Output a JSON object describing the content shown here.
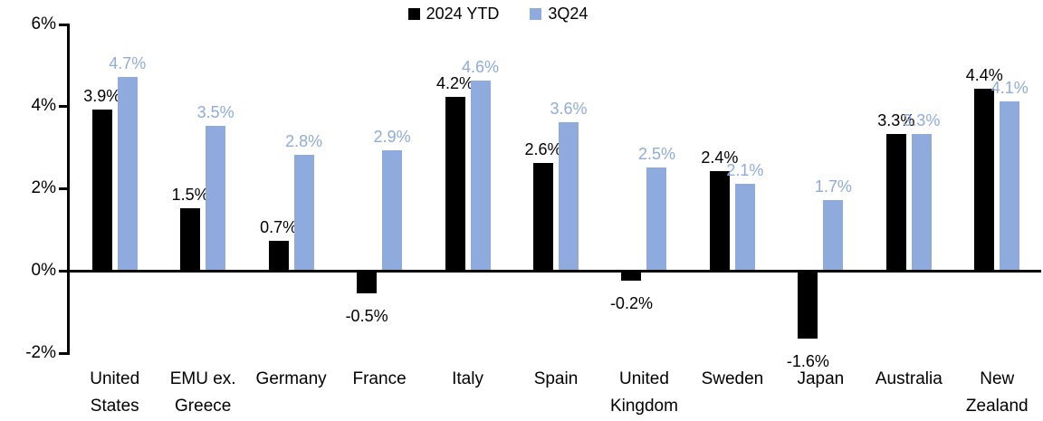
{
  "chart_data": {
    "type": "bar",
    "legend": {
      "position": "top-center",
      "entries": [
        "2024 YTD",
        "3Q24"
      ]
    },
    "categories": [
      "United States",
      "EMU ex. Greece",
      "Germany",
      "France",
      "Italy",
      "Spain",
      "United Kingdom",
      "Sweden",
      "Japan",
      "Australia",
      "New Zealand"
    ],
    "category_lines": [
      [
        "United",
        "States"
      ],
      [
        "EMU ex.",
        "Greece"
      ],
      [
        "Germany"
      ],
      [
        "France"
      ],
      [
        "Italy"
      ],
      [
        "Spain"
      ],
      [
        "United",
        "Kingdom"
      ],
      [
        "Sweden"
      ],
      [
        "Japan"
      ],
      [
        "Australia"
      ],
      [
        "New",
        "Zealand"
      ]
    ],
    "series": [
      {
        "name": "2024 YTD",
        "color": "#000000",
        "values": [
          3.9,
          1.5,
          0.7,
          -0.5,
          4.2,
          2.6,
          -0.2,
          2.4,
          -1.6,
          3.3,
          4.4
        ],
        "labels": [
          "3.9%",
          "1.5%",
          "0.7%",
          "-0.5%",
          "4.2%",
          "2.6%",
          "-0.2%",
          "2.4%",
          "-1.6%",
          "3.3%",
          "4.4%"
        ]
      },
      {
        "name": "3Q24",
        "color": "#8FAADC",
        "values": [
          4.7,
          3.5,
          2.8,
          2.9,
          4.6,
          3.6,
          2.5,
          2.1,
          1.7,
          3.3,
          4.1
        ],
        "labels": [
          "4.7%",
          "3.5%",
          "2.8%",
          "2.9%",
          "4.6%",
          "3.6%",
          "2.5%",
          "2.1%",
          "1.7%",
          "3.3%",
          "4.1%"
        ]
      }
    ],
    "y_axis": {
      "tick_labels": [
        "6%",
        "4%",
        "2%",
        "0%",
        "-2%"
      ],
      "tick_values": [
        6,
        4,
        2,
        0,
        -2
      ],
      "range": [
        -2,
        6
      ],
      "grid": false
    },
    "axis_color": "#000000"
  }
}
